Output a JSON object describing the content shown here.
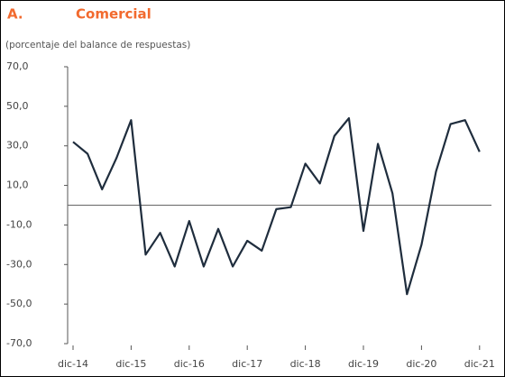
{
  "chart_data": {
    "type": "line",
    "panel_label": "A.",
    "title": "Comercial",
    "subtitle": "(porcentaje del balance de respuestas)",
    "categories": [
      "dic-14",
      null,
      null,
      null,
      "dic-15",
      null,
      null,
      null,
      "dic-16",
      null,
      null,
      null,
      "dic-17",
      null,
      null,
      null,
      "dic-18",
      null,
      null,
      null,
      "dic-19",
      null,
      null,
      null,
      "dic-20",
      null,
      null,
      null,
      "dic-21"
    ],
    "series": [
      {
        "name": "Comercial",
        "color": "#1f2d3d",
        "values": [
          32,
          26,
          8,
          24,
          43,
          -25,
          -14,
          -31,
          -8,
          -31,
          -12,
          -31,
          -18,
          -23,
          -2,
          -1,
          21,
          11,
          35,
          44,
          -13,
          31,
          6,
          -45,
          -20,
          17,
          41,
          43,
          27
        ]
      }
    ],
    "ylim": [
      -70,
      70
    ],
    "yticks": [
      {
        "value": 70,
        "label": "70,0"
      },
      {
        "value": 50,
        "label": "50,0"
      },
      {
        "value": 30,
        "label": "30,0"
      },
      {
        "value": 10,
        "label": "10,0"
      },
      {
        "value": -10,
        "label": "-10,0"
      },
      {
        "value": -30,
        "label": "-30,0"
      },
      {
        "value": -50,
        "label": "-50,0"
      },
      {
        "value": -70,
        "label": "-70,0"
      }
    ],
    "title_color": "#f26a2e",
    "grid": false
  }
}
